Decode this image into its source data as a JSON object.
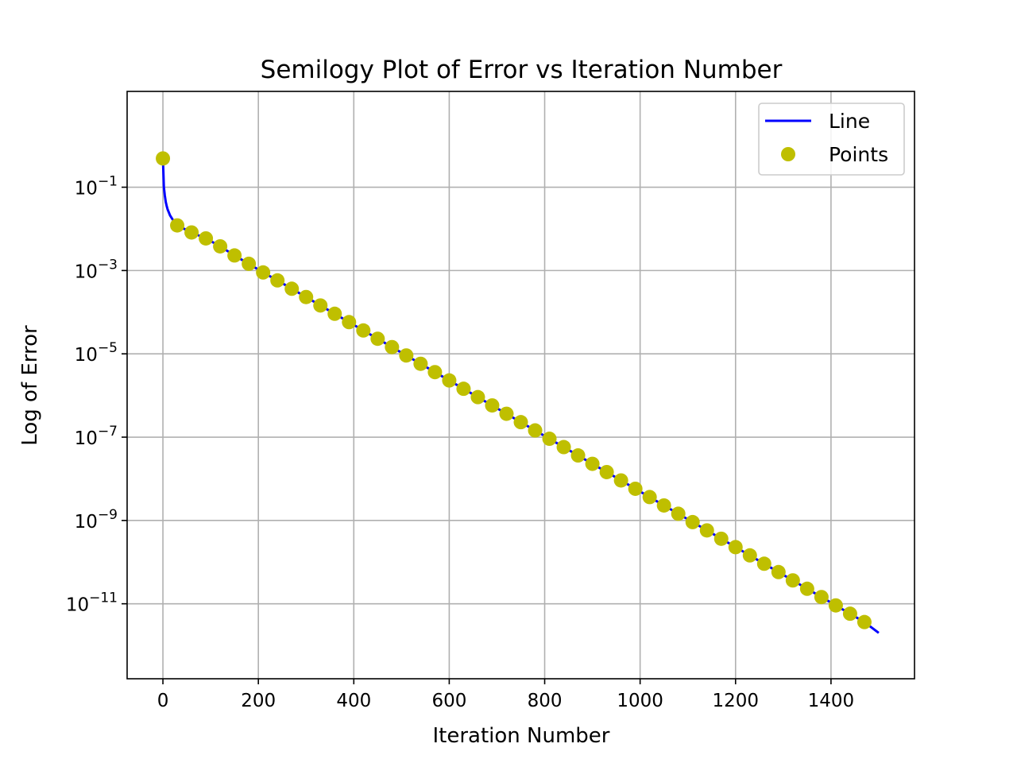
{
  "chart_data": {
    "type": "line",
    "title": "Semilogy Plot of Error vs Iteration Number",
    "xlabel": "Iteration Number",
    "ylabel": "Log of Error",
    "xscale": "linear",
    "yscale": "log",
    "xlim": [
      -75,
      1575
    ],
    "ylim_log10": [
      -12.8,
      1.3
    ],
    "grid": true,
    "legend_position": "top-right",
    "x_ticks": [
      0,
      200,
      400,
      600,
      800,
      1000,
      1200,
      1400
    ],
    "y_ticks": [
      {
        "base": "10",
        "exp": "−1",
        "log": -1
      },
      {
        "base": "10",
        "exp": "−3",
        "log": -3
      },
      {
        "base": "10",
        "exp": "−5",
        "log": -5
      },
      {
        "base": "10",
        "exp": "−7",
        "log": -7
      },
      {
        "base": "10",
        "exp": "−9",
        "log": -9
      },
      {
        "base": "10",
        "exp": "−11",
        "log": -11
      }
    ],
    "series": [
      {
        "name": "Line",
        "style": "line",
        "color": "#0000ff",
        "x": [
          0,
          2,
          4,
          6,
          8,
          10,
          15,
          20,
          25,
          30,
          60,
          90,
          120,
          150,
          180,
          210,
          240,
          270,
          300,
          330,
          360,
          390,
          420,
          450,
          480,
          510,
          540,
          570,
          600,
          630,
          660,
          690,
          720,
          750,
          780,
          810,
          840,
          870,
          900,
          930,
          960,
          990,
          1020,
          1050,
          1080,
          1110,
          1140,
          1170,
          1200,
          1230,
          1260,
          1290,
          1320,
          1350,
          1380,
          1410,
          1440,
          1470,
          1500
        ],
        "y": [
          0.49,
          0.1,
          0.063,
          0.044,
          0.035,
          0.029,
          0.021,
          0.017,
          0.0143,
          0.0121,
          0.0082,
          0.0059,
          0.0038,
          0.0023,
          0.00145,
          0.0009,
          0.00058,
          0.000365,
          0.000231,
          0.000145,
          9.15e-05,
          5.78e-05,
          3.64e-05,
          2.3e-05,
          1.45e-05,
          9.14e-06,
          5.77e-06,
          3.64e-06,
          2.3e-06,
          1.45e-06,
          9.14e-07,
          5.77e-07,
          3.64e-07,
          2.29e-07,
          1.45e-07,
          9.14e-08,
          5.77e-08,
          3.64e-08,
          2.29e-08,
          1.45e-08,
          9.14e-09,
          5.77e-09,
          3.64e-09,
          2.29e-09,
          1.45e-09,
          9.14e-10,
          5.77e-10,
          3.64e-10,
          2.29e-10,
          1.45e-10,
          9.14e-11,
          5.77e-11,
          3.64e-11,
          2.29e-11,
          1.45e-11,
          9.14e-12,
          5.77e-12,
          3.64e-12,
          2e-12
        ]
      },
      {
        "name": "Points",
        "style": "marker",
        "color": "#bfbf00",
        "x": [
          0,
          30,
          60,
          90,
          120,
          150,
          180,
          210,
          240,
          270,
          300,
          330,
          360,
          390,
          420,
          450,
          480,
          510,
          540,
          570,
          600,
          630,
          660,
          690,
          720,
          750,
          780,
          810,
          840,
          870,
          900,
          930,
          960,
          990,
          1020,
          1050,
          1080,
          1110,
          1140,
          1170,
          1200,
          1230,
          1260,
          1290,
          1320,
          1350,
          1380,
          1410,
          1440,
          1470
        ],
        "y": [
          0.49,
          0.0121,
          0.0082,
          0.0059,
          0.0038,
          0.0023,
          0.00145,
          0.0009,
          0.00058,
          0.000365,
          0.000231,
          0.000145,
          9.15e-05,
          5.78e-05,
          3.64e-05,
          2.3e-05,
          1.45e-05,
          9.14e-06,
          5.77e-06,
          3.64e-06,
          2.3e-06,
          1.45e-06,
          9.14e-07,
          5.77e-07,
          3.64e-07,
          2.29e-07,
          1.45e-07,
          9.14e-08,
          5.77e-08,
          3.64e-08,
          2.29e-08,
          1.45e-08,
          9.14e-09,
          5.77e-09,
          3.64e-09,
          2.29e-09,
          1.45e-09,
          9.14e-10,
          5.77e-10,
          3.64e-10,
          2.29e-10,
          1.45e-10,
          9.14e-11,
          5.77e-11,
          3.64e-11,
          2.29e-11,
          1.45e-11,
          9.14e-12,
          5.77e-12,
          3.64e-12
        ]
      }
    ],
    "legend": [
      {
        "label": "Line",
        "kind": "line",
        "color": "#0000ff"
      },
      {
        "label": "Points",
        "kind": "marker",
        "color": "#bfbf00"
      }
    ]
  }
}
